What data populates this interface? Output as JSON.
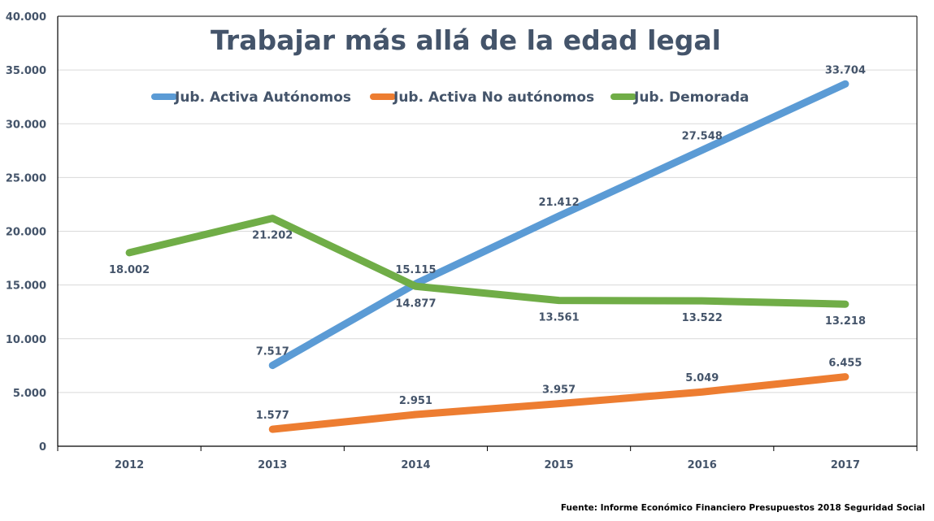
{
  "chart_data": {
    "type": "line",
    "title": "Trabajar más allá de la edad legal",
    "xlabel": "",
    "ylabel": "",
    "categories": [
      "2012",
      "2013",
      "2014",
      "2015",
      "2016",
      "2017"
    ],
    "ylim": [
      0,
      40000
    ],
    "yticks": [
      0,
      5000,
      10000,
      15000,
      20000,
      25000,
      30000,
      35000,
      40000
    ],
    "ytick_labels": [
      "0",
      "5.000",
      "10.000",
      "15.000",
      "20.000",
      "25.000",
      "30.000",
      "35.000",
      "40.000"
    ],
    "grid": true,
    "legend_position": "top",
    "series": [
      {
        "name": "Jub. Activa Autónomos",
        "color": "#5b9bd5",
        "values": [
          null,
          7517,
          15115,
          21412,
          27548,
          33704
        ],
        "labels": [
          null,
          "7.517",
          "15.115",
          "21.412",
          "27.548",
          "33.704"
        ],
        "label_pos": [
          null,
          "above",
          "above",
          "above",
          "above",
          "above"
        ]
      },
      {
        "name": "Jub. Activa No autónomos",
        "color": "#ed7d31",
        "values": [
          null,
          1577,
          2951,
          3957,
          5049,
          6455
        ],
        "labels": [
          null,
          "1.577",
          "2.951",
          "3.957",
          "5.049",
          "6.455"
        ],
        "label_pos": [
          null,
          "above",
          "above",
          "above",
          "above",
          "above"
        ]
      },
      {
        "name": "Jub. Demorada",
        "color": "#70ad47",
        "values": [
          18002,
          21202,
          14877,
          13561,
          13522,
          13218
        ],
        "labels": [
          "18.002",
          "21.202",
          "14.877",
          "13.561",
          "13.522",
          "13.218"
        ],
        "label_pos": [
          "below",
          "below",
          "below",
          "below",
          "below",
          "below"
        ]
      }
    ],
    "source": "Fuente: Informe Económico Financiero Presupuestos 2018 Seguridad Social"
  }
}
